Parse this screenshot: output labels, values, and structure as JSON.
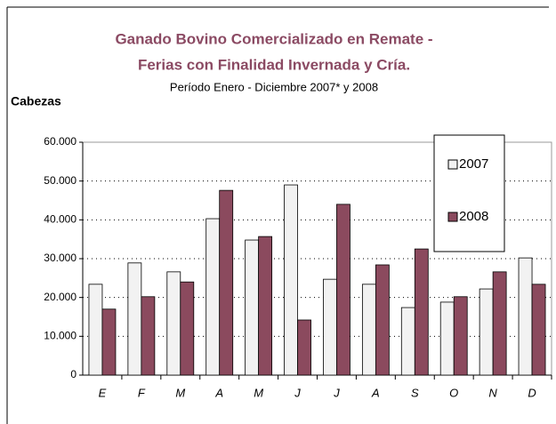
{
  "chart_data": {
    "type": "bar",
    "title": [
      "Ganado Bovino Comercializado en Remate -",
      "Ferias con Finalidad Invernada y Cría."
    ],
    "subtitle": "Período Enero - Diciembre 2007* y 2008",
    "y_label": "Cabezas",
    "categories": [
      "E",
      "F",
      "M",
      "A",
      "M",
      "J",
      "J",
      "A",
      "S",
      "O",
      "N",
      "D"
    ],
    "series": [
      {
        "name": "2007",
        "color": "#f2f2f2",
        "values": [
          23400,
          28900,
          26600,
          40300,
          34800,
          49000,
          24700,
          23400,
          17400,
          18800,
          22200,
          30200
        ]
      },
      {
        "name": "2008",
        "color": "#8b4a5e",
        "values": [
          17000,
          20200,
          24000,
          47600,
          35700,
          14200,
          44000,
          28400,
          32500,
          20200,
          26600,
          23400
        ]
      }
    ],
    "ylim": [
      0,
      60000
    ],
    "yticks": [
      0,
      {
        "value": 10000,
        "label": "10.000"
      },
      {
        "value": 20000,
        "label": "20.000"
      },
      {
        "value": 30000,
        "label": "30.000"
      },
      {
        "value": 40000,
        "label": "40.000"
      },
      {
        "value": 50000,
        "label": "50.000"
      },
      {
        "value": 60000,
        "label": "60.000"
      }
    ],
    "grid": true,
    "legend": "top-right"
  }
}
